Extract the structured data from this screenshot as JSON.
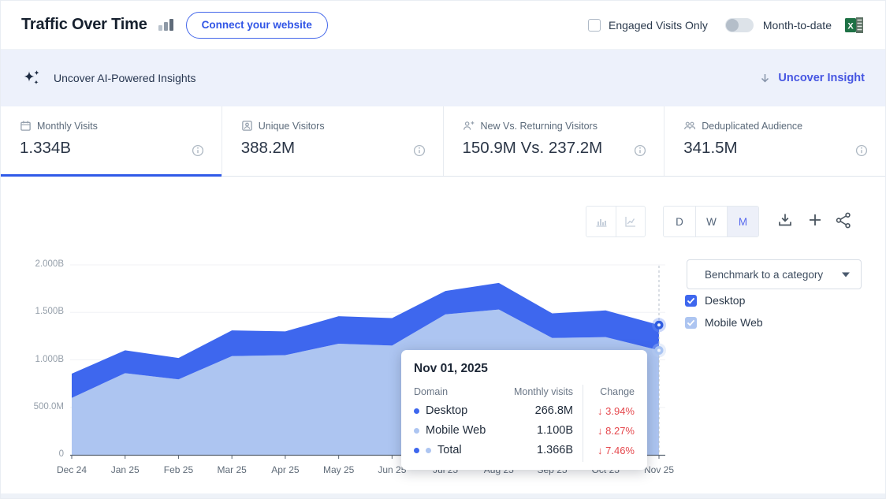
{
  "header": {
    "title": "Traffic Over Time",
    "title_icon": "mini-bar-chart-icon",
    "connect_button": "Connect your website",
    "engaged_visits": {
      "label": "Engaged Visits Only",
      "checked": false
    },
    "month_toggle": {
      "label": "Month-to-date",
      "state": "off"
    },
    "export_icon": "excel-export-icon"
  },
  "ai_bar": {
    "icon": "sparkles-icon",
    "label": "Uncover AI-Powered Insights",
    "action_icon": "arrow-down-icon",
    "action_label": "Uncover Insight"
  },
  "metric_cards": [
    {
      "icon": "calendar-icon",
      "label": "Monthly Visits",
      "value": "1.334B",
      "active": true,
      "info_icon": "info-icon"
    },
    {
      "icon": "unique-visitors-icon",
      "label": "Unique Visitors",
      "value": "388.2M",
      "active": false,
      "info_icon": "info-icon"
    },
    {
      "icon": "new-returning-icon",
      "label": "New Vs. Returning Visitors",
      "value": "150.9M Vs. 237.2M",
      "active": false,
      "info_icon": "info-icon"
    },
    {
      "icon": "audience-icon",
      "label": "Deduplicated Audience",
      "value": "341.5M",
      "active": false,
      "info_icon": "info-icon"
    }
  ],
  "chart_controls": {
    "chart_type_buttons": [
      {
        "icon": "bar-chart-icon",
        "active": false
      },
      {
        "icon": "line-chart-icon",
        "active": false
      }
    ],
    "granularity": [
      {
        "label": "D",
        "active": false
      },
      {
        "label": "W",
        "active": false
      },
      {
        "label": "M",
        "active": true
      }
    ],
    "action_icons": [
      "download-icon",
      "plus-icon",
      "share-icon"
    ]
  },
  "side_panel": {
    "benchmark_placeholder": "Benchmark to a category",
    "legend": [
      {
        "label": "Desktop",
        "checked": true,
        "color": "#3e67ee"
      },
      {
        "label": "Mobile Web",
        "checked": true,
        "color": "#adc5f1"
      }
    ]
  },
  "tooltip": {
    "date": "Nov 01, 2025",
    "columns": [
      "Domain",
      "Monthly visits",
      "Change"
    ],
    "change_color": "#e5484d",
    "rows": [
      {
        "name": "Desktop",
        "dot_colors": [
          "#3e67ee"
        ],
        "visits": "266.8M",
        "change": "3.94%",
        "direction": "down"
      },
      {
        "name": "Mobile Web",
        "dot_colors": [
          "#adc5f1"
        ],
        "visits": "1.100B",
        "change": "8.27%",
        "direction": "down"
      },
      {
        "name": "Total",
        "dot_colors": [
          "#3e67ee",
          "#adc5f1"
        ],
        "visits": "1.366B",
        "change": "7.46%",
        "direction": "down"
      }
    ]
  },
  "chart_data": {
    "type": "area",
    "stacked": true,
    "grid": true,
    "legend_position": "right",
    "highlighted_x": "Nov 25",
    "x": [
      "Dec 24",
      "Jan 25",
      "Feb 25",
      "Mar 25",
      "Apr 25",
      "May 25",
      "Jun 25",
      "Jul 25",
      "Aug 25",
      "Sep 25",
      "Oct 25",
      "Nov 25"
    ],
    "series": [
      {
        "name": "Mobile Web",
        "color": "#adc5f1",
        "values_millions": [
          600,
          860,
          795,
          1040,
          1050,
          1170,
          1150,
          1480,
          1530,
          1230,
          1240,
          1100
        ]
      },
      {
        "name": "Desktop",
        "color": "#3e67ee",
        "values_millions": [
          255,
          240,
          225,
          270,
          250,
          290,
          290,
          245,
          280,
          260,
          280,
          267
        ]
      }
    ],
    "totals_millions": [
      855,
      1100,
      1020,
      1310,
      1300,
      1460,
      1440,
      1725,
      1810,
      1490,
      1520,
      1367
    ],
    "ylim_millions": [
      0,
      2000
    ],
    "y_ticks": [
      {
        "value_millions": 0,
        "label": "0"
      },
      {
        "value_millions": 500,
        "label": "500.0M"
      },
      {
        "value_millions": 1000,
        "label": "1.000B"
      },
      {
        "value_millions": 1500,
        "label": "1.500B"
      },
      {
        "value_millions": 2000,
        "label": "2.000B"
      }
    ]
  }
}
